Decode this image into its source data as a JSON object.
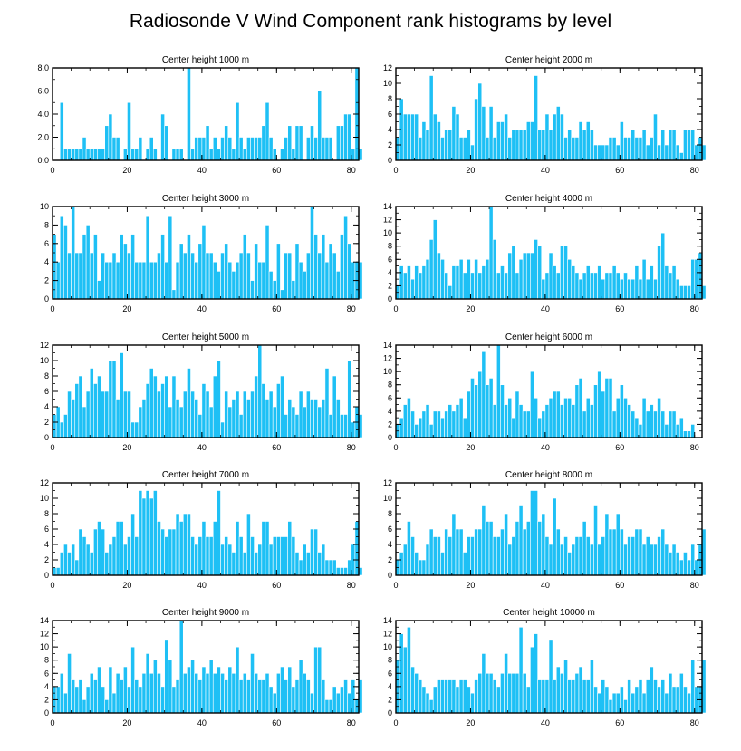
{
  "figure": {
    "title": "Radiosonde V Wind Component rank histograms by level",
    "bar_color": "#1ec0f5",
    "bar_edge_color": "#ffffff",
    "axis_color": "#000000"
  },
  "chart_data": [
    {
      "type": "bar",
      "title": "Center height 1000 m",
      "xlim": [
        0,
        82
      ],
      "ylim": [
        0,
        8
      ],
      "xticks": [
        0,
        20,
        40,
        60,
        80
      ],
      "yticks": [
        0,
        2,
        4,
        6,
        8
      ],
      "ytick_labels": [
        "0.0",
        "2.0",
        "4.0",
        "6.0",
        "8.0"
      ],
      "values": [
        0,
        0,
        5,
        1,
        1,
        1,
        1,
        1,
        2,
        1,
        1,
        1,
        1,
        1,
        3,
        4,
        2,
        2,
        0,
        1,
        5,
        1,
        1,
        2,
        0,
        1,
        2,
        1,
        0,
        4,
        3,
        0,
        1,
        1,
        1,
        0,
        8,
        1,
        2,
        2,
        2,
        3,
        1,
        2,
        1,
        2,
        3,
        2,
        1,
        5,
        2,
        1,
        2,
        2,
        2,
        2,
        3,
        5,
        2,
        1,
        0,
        1,
        2,
        3,
        1,
        3,
        3,
        0,
        2,
        3,
        2,
        6,
        2,
        2,
        2,
        0,
        3,
        3,
        4,
        4,
        1,
        8,
        1
      ]
    },
    {
      "type": "bar",
      "title": "Center height 2000 m",
      "xlim": [
        0,
        82
      ],
      "ylim": [
        0,
        12
      ],
      "xticks": [
        0,
        20,
        40,
        60,
        80
      ],
      "yticks": [
        0,
        2,
        4,
        6,
        8,
        10,
        12
      ],
      "values": [
        3,
        8,
        6,
        6,
        6,
        6,
        3,
        5,
        4,
        11,
        6,
        5,
        3,
        4,
        4,
        7,
        6,
        3,
        3,
        4,
        2,
        8,
        10,
        7,
        3,
        7,
        3,
        5,
        5,
        6,
        3,
        4,
        4,
        4,
        4,
        5,
        5,
        11,
        4,
        4,
        6,
        4,
        6,
        7,
        6,
        3,
        4,
        3,
        3,
        5,
        4,
        5,
        4,
        2,
        2,
        2,
        2,
        3,
        3,
        2,
        5,
        3,
        3,
        4,
        3,
        3,
        4,
        2,
        3,
        6,
        2,
        4,
        2,
        4,
        4,
        2,
        1,
        4,
        4,
        4,
        2,
        3,
        2
      ]
    },
    {
      "type": "bar",
      "title": "Center height 3000 m",
      "xlim": [
        0,
        82
      ],
      "ylim": [
        0,
        10
      ],
      "xticks": [
        0,
        20,
        40,
        60,
        80
      ],
      "yticks": [
        0,
        2,
        4,
        6,
        8,
        10
      ],
      "values": [
        7,
        4,
        9,
        8,
        5,
        10,
        5,
        5,
        7,
        8,
        5,
        7,
        2,
        5,
        4,
        4,
        5,
        4,
        7,
        6,
        5,
        7,
        4,
        4,
        4,
        9,
        4,
        4,
        5,
        7,
        4,
        9,
        1,
        4,
        6,
        5,
        7,
        5,
        4,
        6,
        8,
        5,
        5,
        4,
        3,
        5,
        6,
        4,
        3,
        4,
        5,
        7,
        5,
        2,
        6,
        4,
        4,
        8,
        3,
        2,
        6,
        1,
        5,
        5,
        2,
        6,
        4,
        3,
        5,
        10,
        7,
        5,
        7,
        4,
        6,
        5,
        3,
        7,
        9,
        6,
        4,
        4,
        4
      ]
    },
    {
      "type": "bar",
      "title": "Center height 4000 m",
      "xlim": [
        0,
        82
      ],
      "ylim": [
        0,
        14
      ],
      "xticks": [
        0,
        20,
        40,
        60,
        80
      ],
      "yticks": [
        0,
        2,
        4,
        6,
        8,
        10,
        12,
        14
      ],
      "values": [
        2,
        5,
        4,
        5,
        3,
        5,
        4,
        5,
        6,
        9,
        12,
        7,
        6,
        4,
        2,
        5,
        5,
        6,
        4,
        6,
        4,
        6,
        4,
        5,
        6,
        14,
        9,
        4,
        5,
        4,
        7,
        8,
        4,
        6,
        7,
        7,
        7,
        9,
        8,
        3,
        4,
        7,
        5,
        4,
        8,
        8,
        6,
        5,
        4,
        3,
        4,
        5,
        4,
        4,
        5,
        3,
        4,
        4,
        5,
        4,
        3,
        4,
        3,
        3,
        5,
        3,
        6,
        3,
        5,
        3,
        8,
        10,
        5,
        4,
        5,
        3,
        2,
        2,
        2,
        6,
        6,
        7,
        2
      ]
    },
    {
      "type": "bar",
      "title": "Center height 5000 m",
      "xlim": [
        0,
        82
      ],
      "ylim": [
        0,
        12
      ],
      "xticks": [
        0,
        20,
        40,
        60,
        80
      ],
      "yticks": [
        0,
        2,
        4,
        6,
        8,
        10,
        12
      ],
      "values": [
        3,
        4,
        2,
        3,
        6,
        5,
        7,
        8,
        4,
        6,
        9,
        7,
        8,
        6,
        6,
        10,
        10,
        5,
        11,
        6,
        6,
        2,
        2,
        4,
        5,
        7,
        9,
        8,
        6,
        7,
        8,
        4,
        8,
        5,
        4,
        6,
        9,
        6,
        5,
        3,
        7,
        6,
        4,
        8,
        10,
        2,
        6,
        4,
        5,
        6,
        3,
        6,
        5,
        6,
        8,
        12,
        7,
        5,
        6,
        4,
        7,
        8,
        3,
        5,
        4,
        3,
        6,
        4,
        6,
        5,
        5,
        4,
        5,
        9,
        3,
        8,
        5,
        3,
        3,
        10,
        2,
        4,
        3
      ]
    },
    {
      "type": "bar",
      "title": "Center height 6000 m",
      "xlim": [
        0,
        82
      ],
      "ylim": [
        0,
        14
      ],
      "xticks": [
        0,
        20,
        40,
        60,
        80
      ],
      "yticks": [
        0,
        2,
        4,
        6,
        8,
        10,
        12,
        14
      ],
      "values": [
        2,
        3,
        5,
        6,
        4,
        2,
        3,
        4,
        5,
        2,
        4,
        4,
        3,
        4,
        5,
        4,
        5,
        6,
        3,
        7,
        9,
        8,
        10,
        13,
        8,
        9,
        5,
        14,
        8,
        5,
        6,
        3,
        7,
        5,
        4,
        4,
        10,
        6,
        3,
        4,
        5,
        6,
        7,
        7,
        5,
        6,
        6,
        5,
        8,
        9,
        4,
        6,
        5,
        8,
        10,
        7,
        9,
        9,
        4,
        6,
        8,
        6,
        5,
        4,
        3,
        2,
        6,
        4,
        5,
        4,
        6,
        4,
        2,
        4,
        4,
        2,
        3,
        1,
        1,
        2
      ]
    },
    {
      "type": "bar",
      "title": "Center height 7000 m",
      "xlim": [
        0,
        82
      ],
      "ylim": [
        0,
        12
      ],
      "xticks": [
        0,
        20,
        40,
        60,
        80
      ],
      "yticks": [
        0,
        2,
        4,
        6,
        8,
        10,
        12
      ],
      "values": [
        1,
        1,
        3,
        4,
        3,
        4,
        2,
        6,
        5,
        4,
        3,
        6,
        7,
        6,
        3,
        4,
        5,
        7,
        7,
        4,
        5,
        8,
        5,
        11,
        10,
        11,
        10,
        11,
        7,
        6,
        5,
        6,
        6,
        8,
        7,
        8,
        8,
        5,
        4,
        5,
        7,
        5,
        5,
        7,
        11,
        4,
        5,
        4,
        3,
        7,
        5,
        3,
        8,
        5,
        3,
        4,
        7,
        7,
        4,
        5,
        5,
        5,
        5,
        7,
        5,
        3,
        2,
        4,
        3,
        6,
        6,
        3,
        4,
        2,
        2,
        2,
        1,
        1,
        1,
        2,
        4,
        7,
        1
      ]
    },
    {
      "type": "bar",
      "title": "Center height 8000 m",
      "xlim": [
        0,
        82
      ],
      "ylim": [
        0,
        12
      ],
      "xticks": [
        0,
        20,
        40,
        60,
        80
      ],
      "yticks": [
        0,
        2,
        4,
        6,
        8,
        10,
        12
      ],
      "values": [
        2,
        3,
        4,
        7,
        5,
        3,
        2,
        2,
        4,
        6,
        5,
        5,
        3,
        6,
        5,
        8,
        6,
        6,
        3,
        5,
        5,
        6,
        6,
        9,
        7,
        7,
        5,
        5,
        6,
        8,
        4,
        5,
        7,
        9,
        6,
        7,
        11,
        11,
        7,
        8,
        5,
        4,
        10,
        6,
        4,
        5,
        3,
        4,
        5,
        5,
        7,
        5,
        4,
        9,
        4,
        5,
        8,
        6,
        6,
        8,
        6,
        4,
        5,
        5,
        6,
        6,
        4,
        5,
        4,
        4,
        5,
        6,
        4,
        3,
        4,
        3,
        2,
        3,
        2,
        4,
        2,
        4,
        6
      ]
    },
    {
      "type": "bar",
      "title": "Center height 9000 m",
      "xlim": [
        0,
        82
      ],
      "ylim": [
        0,
        14
      ],
      "xticks": [
        0,
        20,
        40,
        60,
        80
      ],
      "yticks": [
        0,
        2,
        4,
        6,
        8,
        10,
        12,
        14
      ],
      "values": [
        4,
        4,
        6,
        3,
        9,
        5,
        4,
        5,
        2,
        4,
        6,
        5,
        7,
        4,
        2,
        7,
        3,
        6,
        5,
        7,
        4,
        10,
        5,
        4,
        6,
        9,
        6,
        8,
        6,
        4,
        11,
        8,
        4,
        5,
        14,
        6,
        7,
        8,
        6,
        5,
        7,
        6,
        8,
        6,
        7,
        6,
        5,
        7,
        6,
        10,
        5,
        6,
        5,
        9,
        6,
        5,
        5,
        6,
        4,
        3,
        6,
        7,
        5,
        7,
        4,
        5,
        8,
        6,
        5,
        3,
        10,
        10,
        5,
        2,
        2,
        4,
        3,
        4,
        5,
        3,
        5,
        2,
        5
      ]
    },
    {
      "type": "bar",
      "title": "Center height 10000 m",
      "xlim": [
        0,
        82
      ],
      "ylim": [
        0,
        14
      ],
      "xticks": [
        0,
        20,
        40,
        60,
        80
      ],
      "yticks": [
        0,
        2,
        4,
        6,
        8,
        10,
        12,
        14
      ],
      "values": [
        8,
        12,
        10,
        13,
        7,
        6,
        5,
        4,
        3,
        2,
        4,
        5,
        5,
        5,
        5,
        5,
        4,
        5,
        5,
        4,
        3,
        5,
        6,
        9,
        6,
        6,
        5,
        4,
        6,
        9,
        6,
        6,
        6,
        13,
        6,
        4,
        10,
        12,
        5,
        5,
        5,
        11,
        5,
        7,
        6,
        8,
        5,
        5,
        6,
        7,
        5,
        5,
        8,
        4,
        3,
        5,
        4,
        2,
        3,
        3,
        4,
        2,
        5,
        3,
        4,
        5,
        3,
        5,
        7,
        5,
        4,
        5,
        3,
        6,
        4,
        4,
        6,
        4,
        3,
        8,
        4,
        4,
        8
      ]
    }
  ]
}
